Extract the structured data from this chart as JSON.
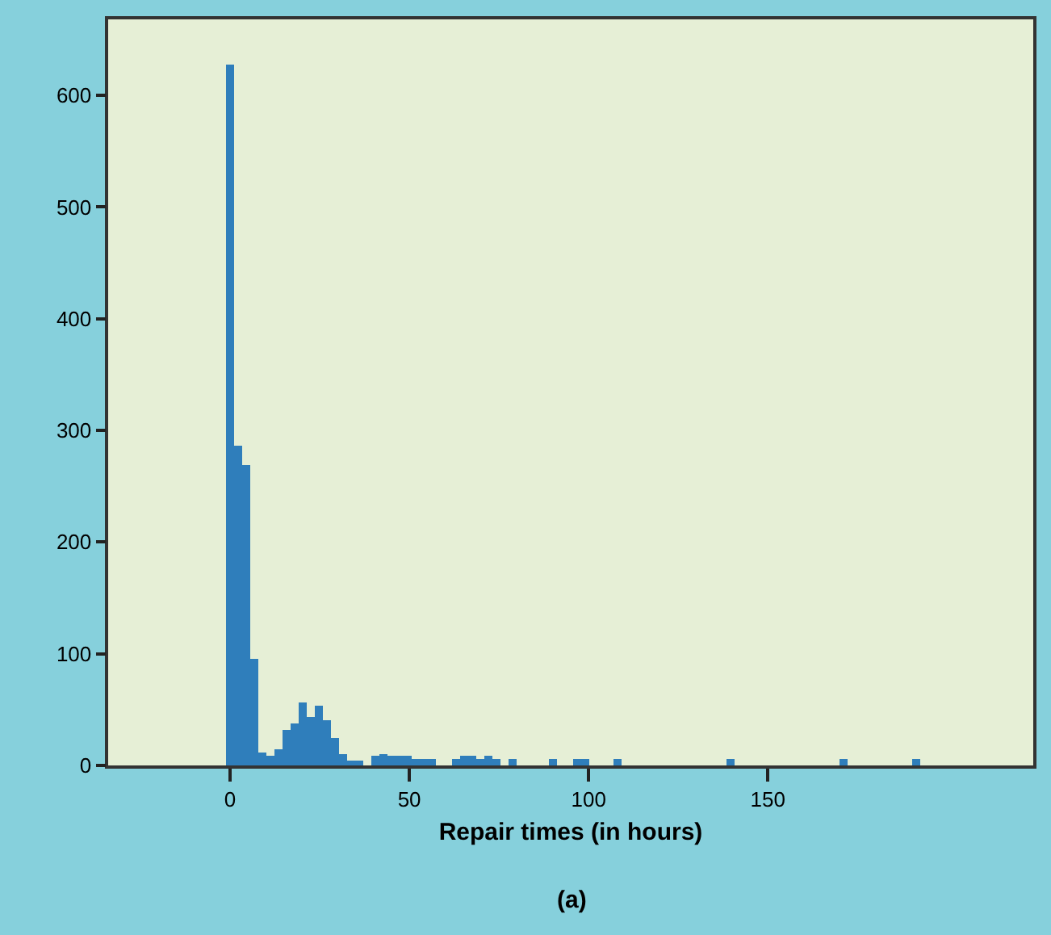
{
  "chart_data": {
    "type": "histogram",
    "xlabel": "Repair times (in hours)",
    "annotations": [
      "(a)"
    ],
    "bins": [
      -1,
      1.25,
      3.5,
      5.75,
      8,
      10.25,
      12.5,
      14.75,
      17,
      19.25,
      21.5,
      23.75,
      26,
      28.25,
      30.5,
      32.75,
      35,
      37.25,
      39.5,
      41.75,
      44,
      46.25,
      48.5,
      50.75,
      53,
      55.25,
      57.5,
      59.75,
      62,
      64.25,
      66.5,
      68.75,
      71,
      73.25,
      75.5,
      77.75,
      80,
      82.25,
      84.5,
      86.75,
      89,
      91.25,
      93.5,
      95.75,
      98,
      100.25,
      102.5,
      104.75,
      107,
      109.25,
      111.5,
      113.75,
      116,
      118.25,
      120.5,
      122.75,
      125,
      127.25,
      129.5,
      131.75,
      134,
      136.25,
      138.5,
      140.75,
      143,
      145.25,
      147.5,
      149.75,
      152,
      154.25,
      156.5,
      158.75,
      161,
      163.25,
      165.5,
      167.75,
      170,
      172.25,
      174.5,
      176.75,
      179,
      181.25,
      183.5,
      185.75,
      188,
      190.25,
      192.5
    ],
    "values": [
      627,
      286,
      269,
      96,
      12,
      8,
      15,
      32,
      38,
      57,
      44,
      54,
      40,
      25,
      10,
      5,
      5,
      0,
      8,
      10,
      8,
      8,
      8,
      6,
      6,
      6,
      0,
      0,
      6,
      8,
      8,
      6,
      8,
      6,
      0,
      6,
      0,
      0,
      0,
      0,
      6,
      0,
      0,
      6,
      6,
      0,
      0,
      0,
      6,
      0,
      0,
      0,
      0,
      0,
      0,
      0,
      0,
      0,
      0,
      0,
      0,
      0,
      6,
      0,
      0,
      0,
      0,
      0,
      0,
      0,
      0,
      0,
      0,
      0,
      0,
      0,
      6,
      0,
      0,
      0,
      0,
      0,
      0,
      0,
      0,
      6
    ],
    "color": "#2f7ebb",
    "xlim": [
      -34,
      224
    ],
    "xticks": [
      0,
      50,
      100,
      150
    ],
    "ylim": [
      0,
      668
    ],
    "yticks": [
      0,
      100,
      200,
      300,
      400,
      500,
      600
    ],
    "grid": false,
    "legend": false
  }
}
